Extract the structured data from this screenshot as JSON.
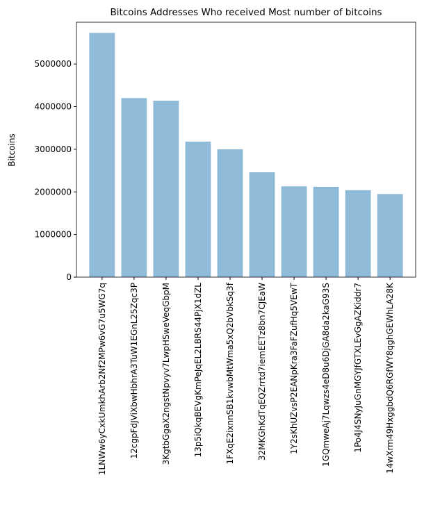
{
  "chart_data": {
    "type": "bar",
    "title": "Bitcoins Addresses Who received Most number of bitcoins",
    "y_label": "Bitcoins",
    "categories": [
      "1LNWw6yCxkUmkhArb2Nf2MPw6vG7u5WG7q",
      "12cgpFdJViXbwHbhrA3TuW1EGnL25Zqc3P",
      "3KgtbGgaX2ngstNpvyv7LwpHSweVeqGbpM",
      "13p5iQkqBEVgKmPeJqEL2LBRS44PjX1dZL",
      "1FXqE2ixnnSB1kvwbMtWma5xQ2bVbkSq3f",
      "32MKGhKdTqEQZrrtd7iemEETz8bn7CJEaW",
      "1Y2sKhUZvsP2EANpKra3FaFZufHq5VEwT",
      "1GQmweAj7Lqwzs4eD8u6DjGA8da2kaG93S",
      "1Po4J4SNyJuGnMGYJfGTXLEvGgAZKiddr7",
      "14wXrm49HxggbdQ6RGfWY8qghGEWhLA28K"
    ],
    "values": [
      5730000,
      4200000,
      4140000,
      3180000,
      3000000,
      2460000,
      2130000,
      2120000,
      2040000,
      1950000
    ],
    "color": "#8fbbd9",
    "ylim": [
      0,
      5980000
    ],
    "yticks": [
      0,
      1000000,
      2000000,
      3000000,
      4000000,
      5000000
    ],
    "grid": false
  }
}
